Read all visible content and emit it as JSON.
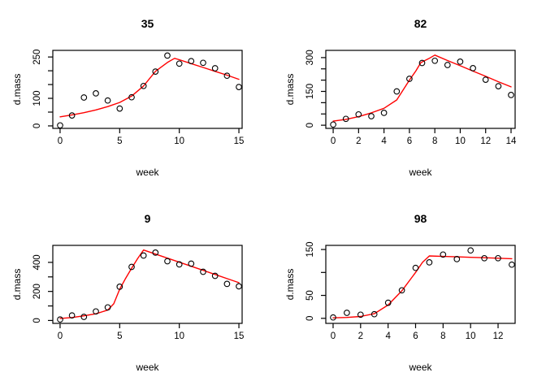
{
  "figure": {
    "background": "#ffffff",
    "axis_color": "#000000",
    "point_color": "#000000",
    "fit_line_color": "#ff0000"
  },
  "chart_data": [
    {
      "type": "scatter",
      "title": "35",
      "xlabel": "week",
      "ylabel": "d.mass",
      "xlim": [
        -0.61,
        15.27
      ],
      "ylim": [
        -9,
        274
      ],
      "grid": false,
      "xticks": [
        0,
        5,
        10,
        15
      ],
      "xtick_labels": [
        "0",
        "5",
        "10",
        "15"
      ],
      "yticks": [
        0,
        50,
        100,
        150,
        200,
        250
      ],
      "ytick_labels": [
        "0",
        "",
        "100",
        "",
        "",
        "250"
      ],
      "points_x": [
        0,
        1,
        2,
        3,
        4,
        5,
        6,
        7,
        8,
        9,
        10,
        11,
        12,
        13,
        14,
        15
      ],
      "points_y": [
        2,
        38,
        103,
        118,
        92,
        63,
        104,
        145,
        197,
        255,
        226,
        235,
        229,
        209,
        182,
        141
      ],
      "fit_line": [
        [
          0,
          33
        ],
        [
          1,
          40
        ],
        [
          2,
          48
        ],
        [
          3,
          58
        ],
        [
          4,
          70
        ],
        [
          5,
          85
        ],
        [
          6,
          108
        ],
        [
          7,
          145
        ],
        [
          8,
          198
        ],
        [
          9,
          230
        ],
        [
          9.6,
          245
        ],
        [
          10,
          240
        ],
        [
          11,
          226
        ],
        [
          12,
          212
        ],
        [
          13,
          198
        ],
        [
          14,
          184
        ],
        [
          15,
          169
        ]
      ]
    },
    {
      "type": "scatter",
      "title": "82",
      "xlabel": "week",
      "ylabel": "d.mass",
      "xlim": [
        -0.58,
        14.32
      ],
      "ylim": [
        -14,
        332
      ],
      "grid": false,
      "xticks": [
        0,
        2,
        4,
        6,
        8,
        10,
        12,
        14
      ],
      "xtick_labels": [
        "0",
        "2",
        "4",
        "6",
        "8",
        "10",
        "12",
        "14"
      ],
      "yticks": [
        0,
        50,
        100,
        150,
        200,
        250,
        300
      ],
      "ytick_labels": [
        "0",
        "",
        "",
        "150",
        "",
        "",
        "300"
      ],
      "points_x": [
        0,
        1,
        2,
        3,
        4,
        5,
        6,
        7,
        8,
        9,
        10,
        11,
        12,
        13,
        14
      ],
      "points_y": [
        3,
        28,
        48,
        40,
        55,
        150,
        206,
        276,
        286,
        267,
        282,
        253,
        202,
        173,
        134
      ],
      "fit_line": [
        [
          0,
          18
        ],
        [
          1,
          26
        ],
        [
          2,
          38
        ],
        [
          3,
          55
        ],
        [
          4,
          75
        ],
        [
          5,
          112
        ],
        [
          6,
          200
        ],
        [
          6.5,
          240
        ],
        [
          6.9,
          278
        ],
        [
          7.5,
          295
        ],
        [
          8,
          311
        ],
        [
          9,
          287
        ],
        [
          10,
          264
        ],
        [
          11,
          240
        ],
        [
          12,
          217
        ],
        [
          13,
          193
        ],
        [
          14,
          170
        ]
      ]
    },
    {
      "type": "scatter",
      "title": "9",
      "xlabel": "week",
      "ylabel": "d.mass",
      "xlim": [
        -0.61,
        15.27
      ],
      "ylim": [
        -20,
        517
      ],
      "grid": false,
      "xticks": [
        0,
        5,
        10,
        15
      ],
      "xtick_labels": [
        "0",
        "5",
        "10",
        "15"
      ],
      "yticks": [
        0,
        100,
        200,
        300,
        400
      ],
      "ytick_labels": [
        "0",
        "",
        "200",
        "",
        "400"
      ],
      "points_x": [
        0,
        1,
        2,
        3,
        4,
        5,
        6,
        7,
        8,
        9,
        10,
        11,
        12,
        13,
        14,
        15
      ],
      "points_y": [
        7,
        35,
        25,
        62,
        90,
        232,
        369,
        447,
        467,
        408,
        386,
        391,
        335,
        307,
        252,
        235
      ],
      "fit_line": [
        [
          0,
          14
        ],
        [
          1,
          20
        ],
        [
          2,
          32
        ],
        [
          3,
          46
        ],
        [
          4,
          72
        ],
        [
          4.5,
          115
        ],
        [
          5,
          215
        ],
        [
          5.5,
          290
        ],
        [
          6,
          360
        ],
        [
          6.5,
          425
        ],
        [
          7,
          485
        ],
        [
          8,
          457
        ],
        [
          9,
          429
        ],
        [
          10,
          401
        ],
        [
          11,
          373
        ],
        [
          12,
          345
        ],
        [
          13,
          317
        ],
        [
          14,
          288
        ],
        [
          15,
          260
        ]
      ]
    },
    {
      "type": "scatter",
      "title": "98",
      "xlabel": "week",
      "ylabel": "d.mass",
      "xlim": [
        -0.53,
        13.24
      ],
      "ylim": [
        -11,
        159
      ],
      "grid": false,
      "xticks": [
        0,
        2,
        4,
        6,
        8,
        10,
        12
      ],
      "xtick_labels": [
        "0",
        "2",
        "4",
        "6",
        "8",
        "10",
        "12"
      ],
      "yticks": [
        0,
        50,
        100,
        150
      ],
      "ytick_labels": [
        "0",
        "50",
        "",
        "150"
      ],
      "points_x": [
        0,
        1,
        2,
        3,
        4,
        5,
        6,
        7,
        8,
        9,
        10,
        11,
        12,
        13
      ],
      "points_y": [
        2,
        12,
        8,
        9,
        34,
        61,
        110,
        122,
        139,
        129,
        148,
        131,
        131,
        117
      ],
      "fit_line": [
        [
          0,
          1
        ],
        [
          1,
          2
        ],
        [
          2,
          4
        ],
        [
          3,
          10
        ],
        [
          4,
          29
        ],
        [
          5,
          60
        ],
        [
          6,
          100
        ],
        [
          6.5,
          122
        ],
        [
          7,
          136
        ],
        [
          8,
          135
        ],
        [
          9,
          134
        ],
        [
          10,
          133
        ],
        [
          11,
          132
        ],
        [
          12,
          131
        ],
        [
          13,
          130
        ]
      ]
    }
  ]
}
